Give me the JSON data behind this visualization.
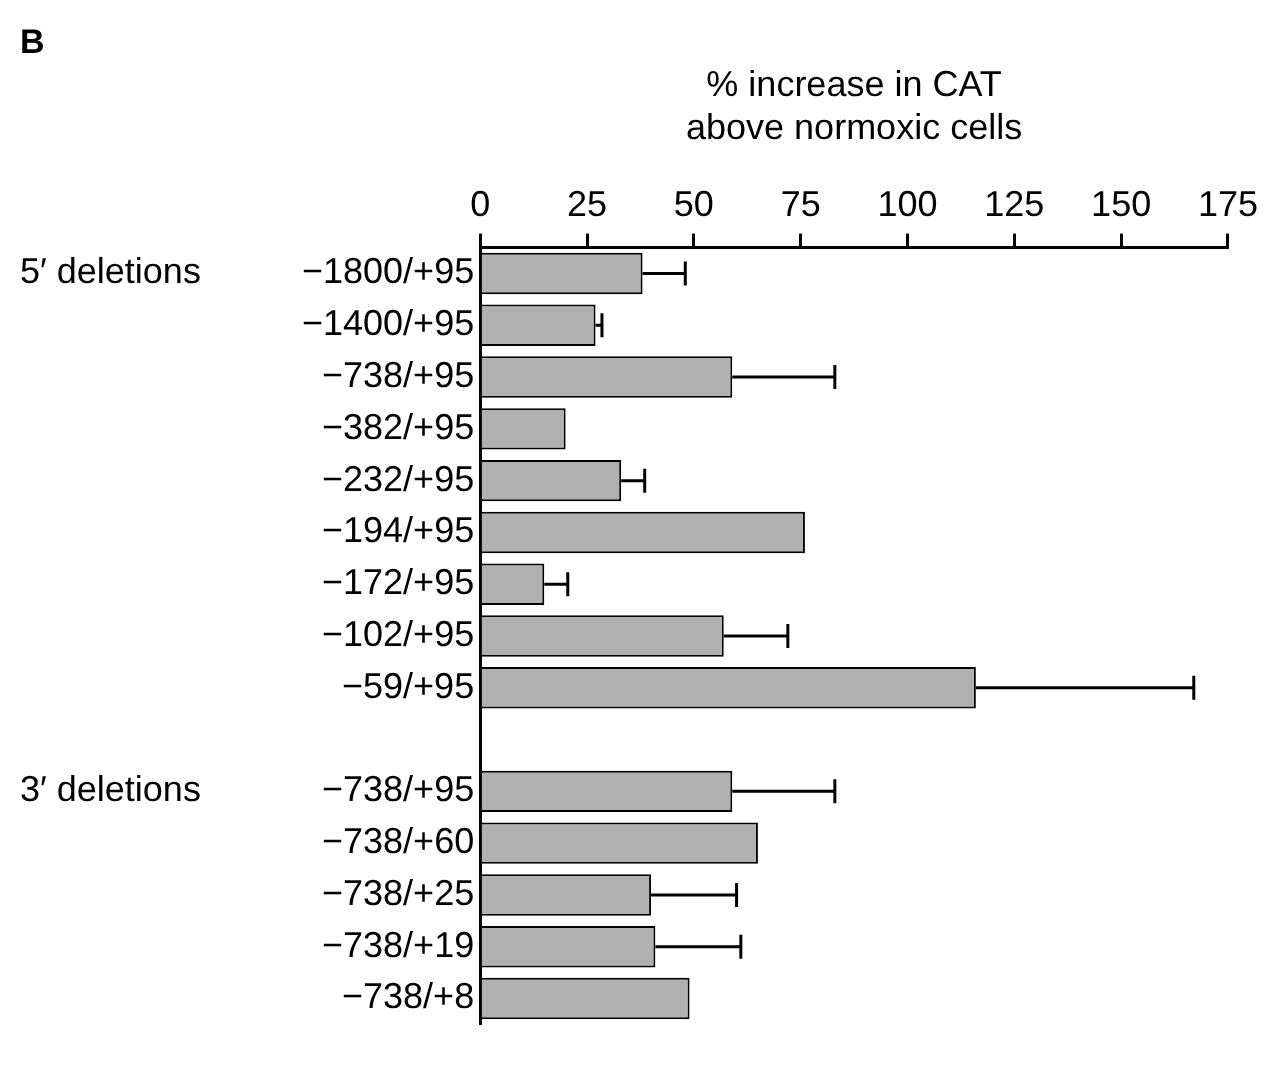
{
  "chart_data": {
    "type": "bar",
    "orientation": "horizontal",
    "xlabel": "% increase in CAT above normoxic cells",
    "categories": [
      "−1800/+95",
      "−1400/+95",
      "−738/+95",
      "−382/+95",
      "−232/+95",
      "−194/+95",
      "−172/+95",
      "−102/+95",
      "−59/+95",
      null,
      "−738/+95",
      "−738/+60",
      "−738/+25",
      "−738/+19",
      "−738/+8"
    ],
    "values": [
      38,
      27,
      59,
      20,
      33,
      76,
      15,
      57,
      116,
      null,
      59,
      65,
      40,
      41,
      49
    ],
    "errors": [
      [
        38,
        48
      ],
      [
        27,
        28.5
      ],
      [
        59,
        83
      ],
      null,
      [
        33,
        38.5
      ],
      null,
      [
        15,
        20.5
      ],
      [
        57,
        72
      ],
      [
        116,
        167
      ],
      null,
      [
        59,
        83
      ],
      null,
      [
        40,
        60
      ],
      [
        41,
        61
      ],
      null
    ],
    "color": "#b0b0b0",
    "xlim": [
      0,
      175
    ],
    "xticks": [
      0,
      25,
      50,
      75,
      100,
      125,
      150,
      175
    ],
    "grid": false,
    "annotations": [
      "B",
      "5′ deletions",
      "3′ deletions"
    ]
  }
}
